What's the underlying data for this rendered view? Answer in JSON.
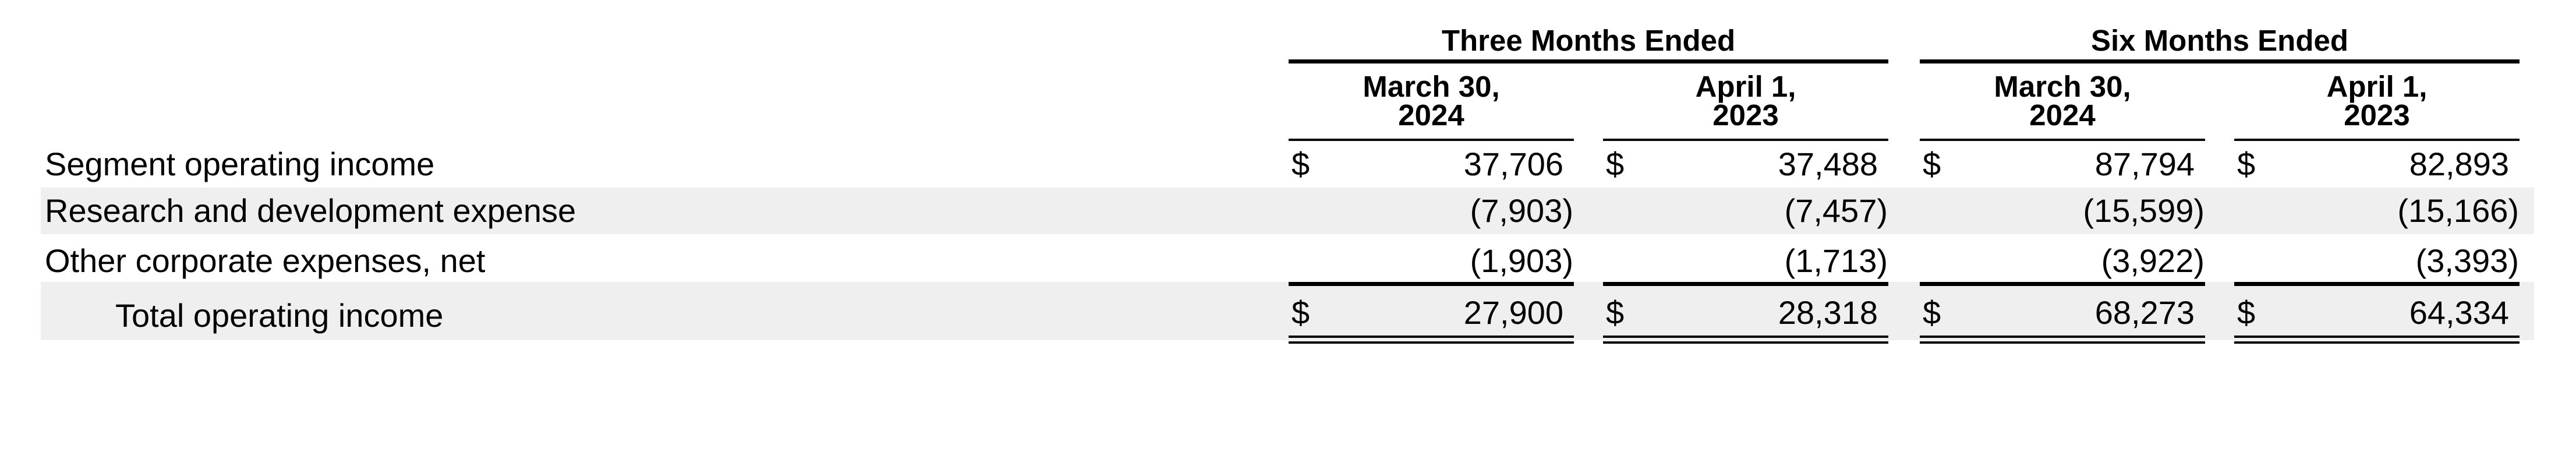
{
  "table": {
    "groups": [
      {
        "label": "Three Months Ended"
      },
      {
        "label": "Six Months Ended"
      }
    ],
    "columns": [
      {
        "line1": "March 30,",
        "line2": "2024"
      },
      {
        "line1": "April 1,",
        "line2": "2023"
      },
      {
        "line1": "March 30,",
        "line2": "2024"
      },
      {
        "line1": "April 1,",
        "line2": "2023"
      }
    ],
    "currency_symbol": "$",
    "rows": [
      {
        "label": "Segment operating income",
        "values": [
          "37,706",
          "37,488",
          "87,794",
          "82,893"
        ]
      },
      {
        "label": "Research and development expense",
        "values": [
          "(7,903)",
          "(7,457)",
          "(15,599)",
          "(15,166)"
        ]
      },
      {
        "label": "Other corporate expenses, net",
        "values": [
          "(1,903)",
          "(1,713)",
          "(3,922)",
          "(3,393)"
        ]
      },
      {
        "label": "Total operating income",
        "values": [
          "27,900",
          "28,318",
          "68,273",
          "64,334"
        ]
      }
    ]
  }
}
